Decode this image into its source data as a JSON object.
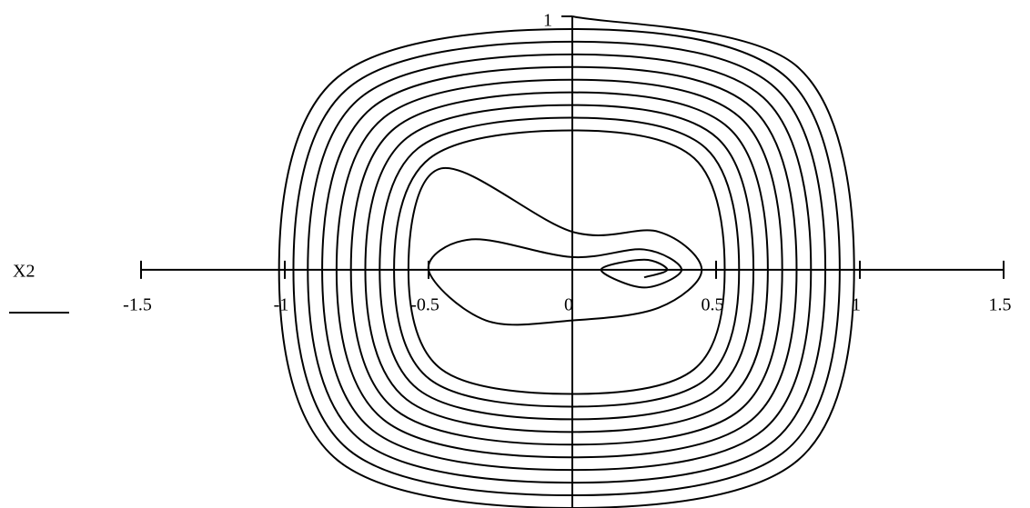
{
  "chart_data": {
    "type": "line",
    "ylabel": "X2",
    "color": "#000000",
    "xlim": [
      -1.5,
      1.5
    ],
    "xticks": [
      -1.5,
      -1,
      -0.5,
      0,
      0.5,
      1,
      1.5
    ],
    "ylim": [
      -0.94,
      1
    ],
    "yticks": [
      1
    ],
    "x": [
      0,
      0.784,
      0.98,
      0.784,
      0,
      -0.816,
      -1.02,
      -0.816,
      0,
      0.744,
      0.93,
      0.744,
      0,
      -0.776,
      -0.97,
      -0.776,
      0,
      0.704,
      0.88,
      0.704,
      0,
      -0.736,
      -0.92,
      -0.736,
      0,
      0.664,
      0.83,
      0.664,
      0,
      -0.696,
      -0.87,
      -0.696,
      0,
      0.624,
      0.78,
      0.624,
      0,
      -0.656,
      -0.82,
      -0.656,
      0,
      0.584,
      0.73,
      0.584,
      0,
      -0.616,
      -0.77,
      -0.616,
      0,
      0.544,
      0.68,
      0.544,
      0,
      -0.576,
      -0.72,
      -0.576,
      0,
      0.504,
      0.63,
      0.504,
      0,
      -0.536,
      -0.67,
      -0.536,
      0,
      0.464,
      0.58,
      0.464,
      0,
      -0.496,
      -0.62,
      -0.496,
      0,
      0.424,
      0.53,
      0.424,
      0,
      -0.456,
      -0.57,
      -0.456,
      0,
      0.3,
      0.45,
      0.3,
      0,
      -0.3,
      -0.5,
      -0.35,
      0,
      0.25,
      0.38,
      0.25,
      0.1,
      0.25,
      0.33,
      0.25
    ],
    "values": [
      1,
      0.8,
      0,
      -0.752,
      -0.94,
      -0.752,
      0,
      0.76,
      0.95,
      0.76,
      0,
      -0.712,
      -0.89,
      -0.712,
      0,
      0.72,
      0.9,
      0.72,
      0,
      -0.672,
      -0.84,
      -0.672,
      0,
      0.68,
      0.85,
      0.68,
      0,
      -0.632,
      -0.79,
      -0.632,
      0,
      0.64,
      0.8,
      0.64,
      0,
      -0.592,
      -0.74,
      -0.592,
      0,
      0.6,
      0.75,
      0.6,
      0,
      -0.552,
      -0.69,
      -0.552,
      0,
      0.56,
      0.7,
      0.56,
      0,
      -0.512,
      -0.64,
      -0.512,
      0,
      0.52,
      0.65,
      0.52,
      0,
      -0.472,
      -0.59,
      -0.472,
      0,
      0.48,
      0.6,
      0.48,
      0,
      -0.432,
      -0.54,
      -0.432,
      0,
      0.44,
      0.55,
      0.44,
      0,
      -0.392,
      -0.49,
      -0.392,
      0,
      0.4,
      0.15,
      0.15,
      0,
      -0.15,
      -0.2,
      -0.2,
      0,
      0.12,
      0.05,
      0.08,
      0,
      -0.07,
      0,
      0.04,
      0,
      -0.03
    ]
  }
}
